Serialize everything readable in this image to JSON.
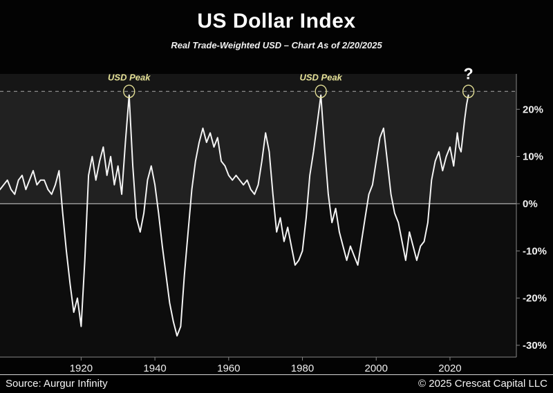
{
  "header": {
    "title": "US Dollar Index",
    "subtitle": "Real Trade-Weighted USD – Chart As of 2/20/2025"
  },
  "footer": {
    "source": "Source: Aurgur Infinity",
    "copyright": "© 2025 Crescat Capital LLC"
  },
  "chart_data": {
    "type": "line",
    "title": "US Dollar Index",
    "subtitle": "Real Trade-Weighted USD – Chart As of 2/20/2025",
    "xlabel": "",
    "ylabel": "",
    "grid": false,
    "legend": false,
    "x_domain": [
      1898,
      2038
    ],
    "y_domain": [
      -32.5,
      27.5
    ],
    "x_ticks": [
      {
        "value": 1920,
        "label": "1920"
      },
      {
        "value": 1940,
        "label": "1940"
      },
      {
        "value": 1960,
        "label": "1960"
      },
      {
        "value": 1980,
        "label": "1980"
      },
      {
        "value": 2000,
        "label": "2000"
      },
      {
        "value": 2020,
        "label": "2020"
      }
    ],
    "y_ticks": [
      {
        "value": 20,
        "label": "20%"
      },
      {
        "value": 10,
        "label": "10%"
      },
      {
        "value": 0,
        "label": "0%"
      },
      {
        "value": -10,
        "label": "-10%"
      },
      {
        "value": -20,
        "label": "-20%"
      },
      {
        "value": -30,
        "label": "-30%"
      }
    ],
    "zero_line_value": 0,
    "dashed_line_value": 23.8,
    "points": [
      [
        1898,
        3
      ],
      [
        1900,
        5
      ],
      [
        1901,
        3
      ],
      [
        1902,
        2
      ],
      [
        1903,
        5
      ],
      [
        1904,
        6
      ],
      [
        1905,
        3
      ],
      [
        1906,
        5
      ],
      [
        1907,
        7
      ],
      [
        1908,
        4
      ],
      [
        1909,
        5
      ],
      [
        1910,
        5
      ],
      [
        1911,
        3
      ],
      [
        1912,
        2
      ],
      [
        1913,
        4
      ],
      [
        1914,
        7
      ],
      [
        1915,
        -2
      ],
      [
        1916,
        -10
      ],
      [
        1917,
        -17
      ],
      [
        1918,
        -23
      ],
      [
        1919,
        -20
      ],
      [
        1920,
        -26
      ],
      [
        1921,
        -12
      ],
      [
        1922,
        6
      ],
      [
        1923,
        10
      ],
      [
        1924,
        5
      ],
      [
        1925,
        9
      ],
      [
        1926,
        12
      ],
      [
        1927,
        6
      ],
      [
        1928,
        10
      ],
      [
        1929,
        4
      ],
      [
        1930,
        8
      ],
      [
        1931,
        2
      ],
      [
        1932,
        13
      ],
      [
        1933,
        23
      ],
      [
        1934,
        8
      ],
      [
        1935,
        -3
      ],
      [
        1936,
        -6
      ],
      [
        1937,
        -2
      ],
      [
        1938,
        5
      ],
      [
        1939,
        8
      ],
      [
        1940,
        4
      ],
      [
        1941,
        -2
      ],
      [
        1942,
        -9
      ],
      [
        1943,
        -15
      ],
      [
        1944,
        -21
      ],
      [
        1945,
        -25
      ],
      [
        1946,
        -28
      ],
      [
        1947,
        -26
      ],
      [
        1948,
        -15
      ],
      [
        1949,
        -6
      ],
      [
        1950,
        3
      ],
      [
        1951,
        9
      ],
      [
        1952,
        13
      ],
      [
        1953,
        16
      ],
      [
        1954,
        13
      ],
      [
        1955,
        15
      ],
      [
        1956,
        12
      ],
      [
        1957,
        14
      ],
      [
        1958,
        9
      ],
      [
        1959,
        8
      ],
      [
        1960,
        6
      ],
      [
        1961,
        5
      ],
      [
        1962,
        6
      ],
      [
        1963,
        5
      ],
      [
        1964,
        4
      ],
      [
        1965,
        5
      ],
      [
        1966,
        3
      ],
      [
        1967,
        2
      ],
      [
        1968,
        4
      ],
      [
        1969,
        9
      ],
      [
        1970,
        15
      ],
      [
        1971,
        11
      ],
      [
        1972,
        2
      ],
      [
        1973,
        -6
      ],
      [
        1974,
        -3
      ],
      [
        1975,
        -8
      ],
      [
        1976,
        -5
      ],
      [
        1977,
        -9
      ],
      [
        1978,
        -13
      ],
      [
        1979,
        -12
      ],
      [
        1980,
        -10
      ],
      [
        1981,
        -3
      ],
      [
        1982,
        6
      ],
      [
        1983,
        11
      ],
      [
        1984,
        17
      ],
      [
        1985,
        23
      ],
      [
        1986,
        12
      ],
      [
        1987,
        2
      ],
      [
        1988,
        -4
      ],
      [
        1989,
        -1
      ],
      [
        1990,
        -6
      ],
      [
        1991,
        -9
      ],
      [
        1992,
        -12
      ],
      [
        1993,
        -9
      ],
      [
        1994,
        -11
      ],
      [
        1995,
        -13
      ],
      [
        1996,
        -8
      ],
      [
        1997,
        -3
      ],
      [
        1998,
        2
      ],
      [
        1999,
        4
      ],
      [
        2000,
        9
      ],
      [
        2001,
        14
      ],
      [
        2002,
        16
      ],
      [
        2003,
        9
      ],
      [
        2004,
        2
      ],
      [
        2005,
        -2
      ],
      [
        2006,
        -4
      ],
      [
        2007,
        -8
      ],
      [
        2008,
        -12
      ],
      [
        2009,
        -6
      ],
      [
        2010,
        -9
      ],
      [
        2011,
        -12
      ],
      [
        2012,
        -9
      ],
      [
        2013,
        -8
      ],
      [
        2014,
        -4
      ],
      [
        2015,
        5
      ],
      [
        2016,
        9
      ],
      [
        2017,
        11
      ],
      [
        2018,
        7
      ],
      [
        2019,
        10
      ],
      [
        2020,
        12
      ],
      [
        2021,
        8
      ],
      [
        2022,
        15
      ],
      [
        2022.5,
        12
      ],
      [
        2023,
        11
      ],
      [
        2024,
        18
      ],
      [
        2024.5,
        21
      ],
      [
        2025,
        23
      ]
    ],
    "annotations": [
      {
        "x": 1933,
        "label": "USD Peak",
        "style": "peak",
        "name": "usd-peak-1933"
      },
      {
        "x": 1985,
        "label": "USD Peak",
        "style": "peak",
        "name": "usd-peak-1985"
      },
      {
        "x": 2025,
        "label": "?",
        "style": "question",
        "name": "question-2025"
      }
    ],
    "colors": {
      "page_bg": "#030303",
      "plot_bg": "#161616",
      "upper_band": "rgba(255,255,255,0.05)",
      "lower_band": "rgba(0,0,0,0.4)",
      "line": "#f5f5f5",
      "zero_line": "#999999",
      "dashed_line": "#aaaaaa",
      "axis": "#888888",
      "tick_label": "#f0f0f0",
      "annotation": "#e4e096",
      "question": "#ffffff"
    }
  }
}
